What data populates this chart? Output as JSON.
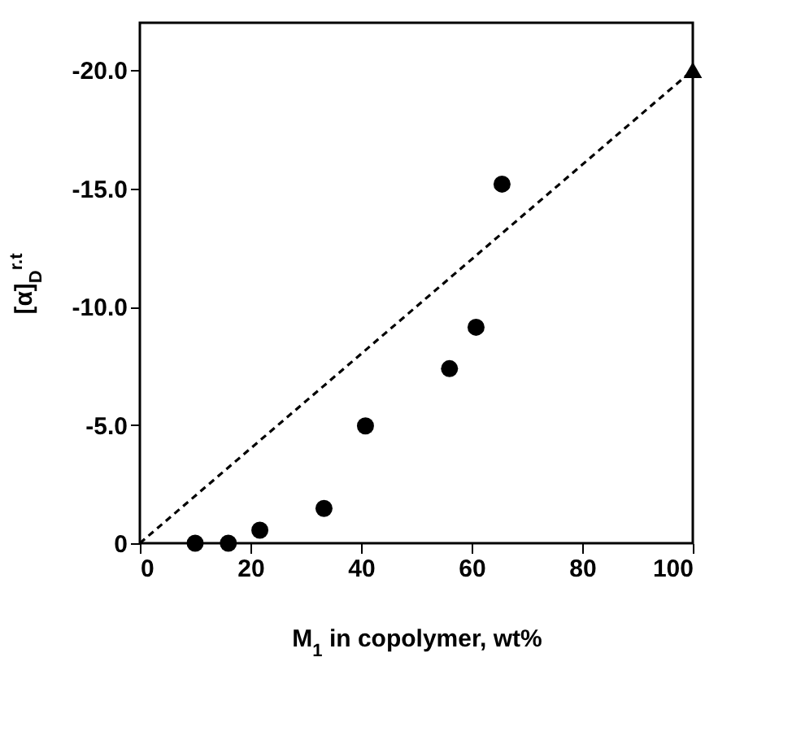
{
  "chart_data": {
    "type": "scatter",
    "xlabel": "M$_{1}$ in copolymer,  wt%",
    "ylabel": "[α]$_{D}$$^{r.t}$",
    "xlim": [
      0,
      100
    ],
    "xticks": [
      0,
      20,
      40,
      60,
      80,
      100
    ],
    "ylim": [
      0,
      -22
    ],
    "yticks": [
      {
        "value": 0,
        "label": "0"
      },
      {
        "value": -5,
        "label": "-5.0"
      },
      {
        "value": -10,
        "label": "-10.0"
      },
      {
        "value": -15,
        "label": "-15.0"
      },
      {
        "value": -20,
        "label": "-20.0"
      }
    ],
    "grid": false,
    "series": [
      {
        "type": "scatter",
        "marker": "circle",
        "color": "#000000",
        "x": [
          10.0,
          16.0,
          21.7,
          33.3,
          40.8,
          56.0,
          60.8,
          65.5
        ],
        "values": [
          0,
          0,
          -0.55,
          -1.47,
          -4.96,
          -7.38,
          -9.13,
          -15.18
        ]
      },
      {
        "type": "scatter",
        "marker": "triangle",
        "color": "#000000",
        "x": [
          100
        ],
        "values": [
          -20
        ]
      },
      {
        "type": "line",
        "marker": "none",
        "line_style": "dashed",
        "color": "#000000",
        "x": [
          0,
          100
        ],
        "values": [
          0,
          -20
        ]
      }
    ]
  }
}
